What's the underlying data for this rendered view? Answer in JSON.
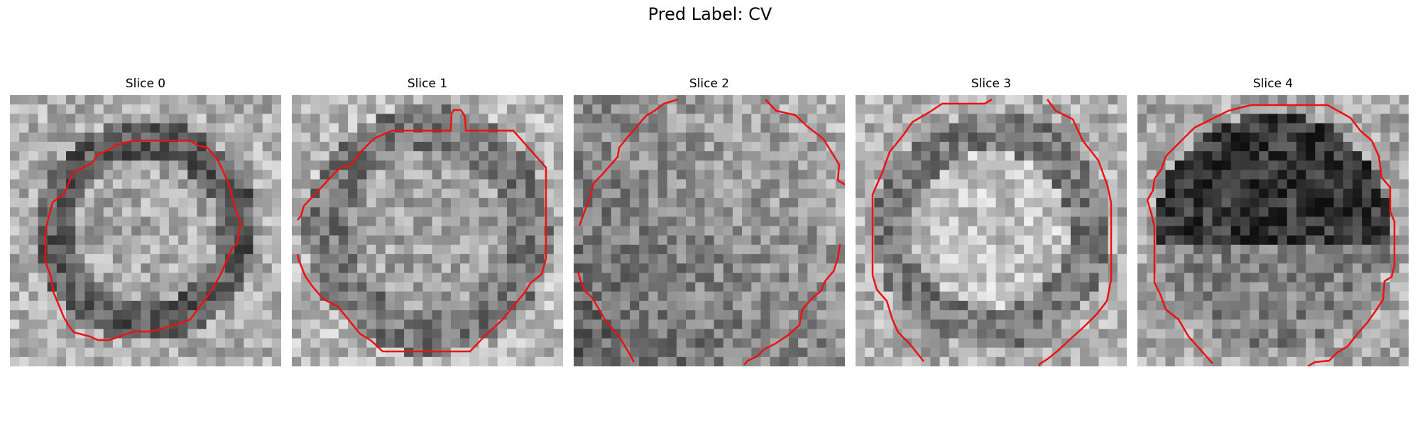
{
  "figure": {
    "suptitle": "Pred Label: CV",
    "panels": [
      {
        "title": "Slice 0",
        "seed": 11,
        "brightness": "light",
        "mode": "ring"
      },
      {
        "title": "Slice 1",
        "seed": 23,
        "brightness": "mid",
        "mode": "ring-light-center"
      },
      {
        "title": "Slice 2",
        "seed": 37,
        "brightness": "mixed",
        "mode": "noisy"
      },
      {
        "title": "Slice 3",
        "seed": 41,
        "brightness": "mid",
        "mode": "bright-center"
      },
      {
        "title": "Slice 4",
        "seed": 59,
        "brightness": "dark",
        "mode": "dark-top"
      }
    ]
  },
  "colors": {
    "contour": "#ee1111",
    "background": "#ffffff"
  }
}
